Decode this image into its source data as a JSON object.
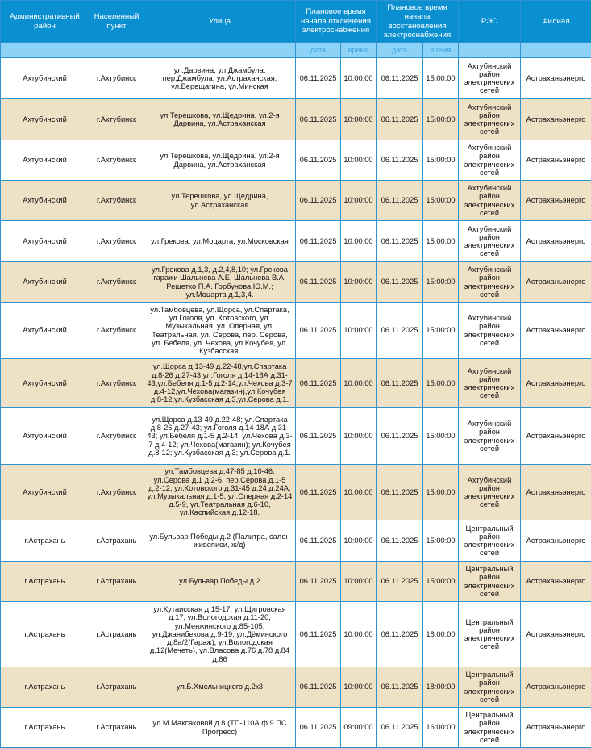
{
  "header": {
    "district": "Административный район",
    "locality": "Населенный пункт",
    "street": "Улица",
    "off_time": "Плановое время начала отключения электроснабжения",
    "restore_time": "Плановое время начала восстановления электроснабжения",
    "res": "РЭС",
    "branch": "Филиал",
    "date": "дата",
    "time": "время"
  },
  "colors": {
    "header_bg": "#0a8fd0",
    "subheader_bg": "#8dd2f7",
    "stripe_bg": "#efe1c6",
    "border": "#2b93cf"
  },
  "rows": [
    {
      "district": "Ахтубинский",
      "locality": "г.Ахтубинск",
      "street": "ул.Дарвина, ул.Джамбула, пер.Джамбула, ул.Астраханская, ул.Верещагина, ул.Минская",
      "off_date": "06.11.2025",
      "off_time": "10:00:00",
      "on_date": "06.11.2025",
      "on_time": "15:00:00",
      "res": "Ахтубинский район электрических сетей",
      "branch": "Астраханьэнерго"
    },
    {
      "district": "Ахтубинский",
      "locality": "г.Ахтубинск",
      "street": "ул.Терешкова, ул.Щедрина, ул.2-я Дарвина, ул.Астраханская",
      "off_date": "06.11.2025",
      "off_time": "10:00:00",
      "on_date": "06.11.2025",
      "on_time": "15:00:00",
      "res": "Ахтубинский район электрических сетей",
      "branch": "Астраханьэнерго"
    },
    {
      "district": "Ахтубинский",
      "locality": "г.Ахтубинск",
      "street": "ул.Терешкова, ул.Щедрина, ул.2-я Дарвина, ул.Астраханская",
      "off_date": "06.11.2025",
      "off_time": "10:00:00",
      "on_date": "06.11.2025",
      "on_time": "15:00:00",
      "res": "Ахтубинский район электрических сетей",
      "branch": "Астраханьэнерго"
    },
    {
      "district": "Ахтубинский",
      "locality": "г.Ахтубинск",
      "street": "ул.Терешкова, ул.Щедрина, ул.Астраханская",
      "off_date": "06.11.2025",
      "off_time": "10:00:00",
      "on_date": "06.11.2025",
      "on_time": "15:00:00",
      "res": "Ахтубинский район электрических сетей",
      "branch": "Астраханьэнерго"
    },
    {
      "district": "Ахтубинский",
      "locality": "г.Ахтубинск",
      "street": "ул.Грекова, ул.Моцарта, ул.Московская",
      "off_date": "06.11.2025",
      "off_time": "10:00:00",
      "on_date": "06.11.2025",
      "on_time": "15:00:00",
      "res": "Ахтубинский район электрических сетей",
      "branch": "Астраханьэнерго"
    },
    {
      "district": "Ахтубинский",
      "locality": "г.Ахтубинск",
      "street": "ул.Грекова д.1,3, д.2,4,8,10; ул.Грекова гаражи Шальнева А.Е. Шальнева В.А. Решетко П.А. Горбунова Ю.М.; ул.Моцарта д.1,3,4.",
      "off_date": "06.11.2025",
      "off_time": "10:00:00",
      "on_date": "06.11.2025",
      "on_time": "15:00:00",
      "res": "Ахтубинский район электрических сетей",
      "branch": "Астраханьэнерго"
    },
    {
      "district": "Ахтубинский",
      "locality": "г.Ахтубинск",
      "street": "ул.Тамбовцева, ул.Щорса, ул.Спартака, ул.Гоголя, ул. Котовского, ул. Музыкальная, ул. Оперная, ул. Театральная, ул. Серова, пер. Серова, ул. Бебеля, ул. Чехова, ул Кочубея, ул. Кузбасская.",
      "off_date": "06.11.2025",
      "off_time": "10:00:00",
      "on_date": "06.11.2025",
      "on_time": "15:00:00",
      "res": "Ахтубинский район электрических сетей",
      "branch": "Астраханьэнерго"
    },
    {
      "district": "Ахтубинский",
      "locality": "г.Ахтубинск",
      "street": "ул.Щорса д.13-49 д.22-48,ул.Спартака д.8-26 д.27-43,ул.Гоголя д.14-18А д.31-43,ул.Бебеля д.1-5 д.2-14,ул.Чехова д.3-7 д.4-12,ул.Чехова(магазин),ул.Кочубея д.8-12,ул.Кузбасская д.3,ул.Серова д.1.",
      "off_date": "06.11.2025",
      "off_time": "10:00:00",
      "on_date": "06.11.2025",
      "on_time": "15:00:00",
      "res": "Ахтубинский район электрических сетей",
      "branch": "Астраханьэнерго"
    },
    {
      "district": "Ахтубинский",
      "locality": "г.Ахтубинск",
      "street": "ул.Щорса д.13-49 д.22-48; ул.Спартака д.8-26 д.27-43; ул.Гоголя д.14-18А д.31-43; ул.Бебеля д.1-5 д.2-14; ул.Чехова д.3-7 д.4-12; ул.Чехова(магазин); ул.Кочубея д.8-12; ул.Кузбасская д.3; ул.Серова д.1.",
      "off_date": "06.11.2025",
      "off_time": "10:00:00",
      "on_date": "06.11.2025",
      "on_time": "15:00:00",
      "res": "Ахтубинский район электрических сетей",
      "branch": "Астраханьэнерго"
    },
    {
      "district": "Ахтубинский",
      "locality": "г.Ахтубинск",
      "street": "ул.Тамбовцева д.47-85 д.10-46, ул.Серова д.1 д.2-6, пер.Серова д.1-5 д.2-12, ул.Котовского д.31-45 д.24 д.24А, ул.Музыкальная д.1-5, ул.Оперная д.2-14 д.5-9, ул.Театральная д.6-10, ул.Каспийская д.12-18.",
      "off_date": "06.11.2025",
      "off_time": "10:00:00",
      "on_date": "06.11.2025",
      "on_time": "15:00:00",
      "res": "Ахтубинский район электрических сетей",
      "branch": "Астраханьэнерго"
    },
    {
      "district": "г.Астрахань",
      "locality": "г.Астрахань",
      "street": "ул.Бульвар Победы д.2 (Палитра, салон живописи, ж/д)",
      "off_date": "06.11.2025",
      "off_time": "10:00:00",
      "on_date": "06.11.2025",
      "on_time": "15:00:00",
      "res": "Центральный район электрических сетей",
      "branch": "Астраханьэнерго"
    },
    {
      "district": "г.Астрахань",
      "locality": "г.Астрахань",
      "street": "ул.Бульвар Победы д.2",
      "off_date": "06.11.2025",
      "off_time": "10:00:00",
      "on_date": "06.11.2025",
      "on_time": "15:00:00",
      "res": "Центральный район электрических сетей",
      "branch": "Астраханьэнерго"
    },
    {
      "district": "г.Астрахань",
      "locality": "г.Астрахань",
      "street": "ул.Кутаисская д.15-17, ул.Щигровская д.17, ул.Вологодская д.11-20, ул.Менжинского д.85-105, ул.Джанибекова д.9-19, ул.Дёминского д.8а/2(Гараж), ул.Вологодская д.12(Мечеть), ул.Власова д.76 д.78 д.84 д.86",
      "off_date": "06.11.2025",
      "off_time": "10:00:00",
      "on_date": "06.11.2025",
      "on_time": "18:00:00",
      "res": "Центральный район электрических сетей",
      "branch": "Астраханьэнерго"
    },
    {
      "district": "г.Астрахань",
      "locality": "г.Астрахань",
      "street": "ул.Б.Хмельницкого д.2к3",
      "off_date": "06.11.2025",
      "off_time": "10:00:00",
      "on_date": "06.11.2025",
      "on_time": "18:00:00",
      "res": "Центральный район электрических сетей",
      "branch": "Астраханьэнерго"
    },
    {
      "district": "г.Астрахань",
      "locality": "г.Астрахань",
      "street": "ул.М.Максаковой д.8 (ТП-110А ф.9 ПС Прогресс)",
      "off_date": "06.11.2025",
      "off_time": "09:00:00",
      "on_date": "06.11.2025",
      "on_time": "16:00:00",
      "res": "Центральный район электрических сетей",
      "branch": "Астраханьэнерго"
    }
  ]
}
